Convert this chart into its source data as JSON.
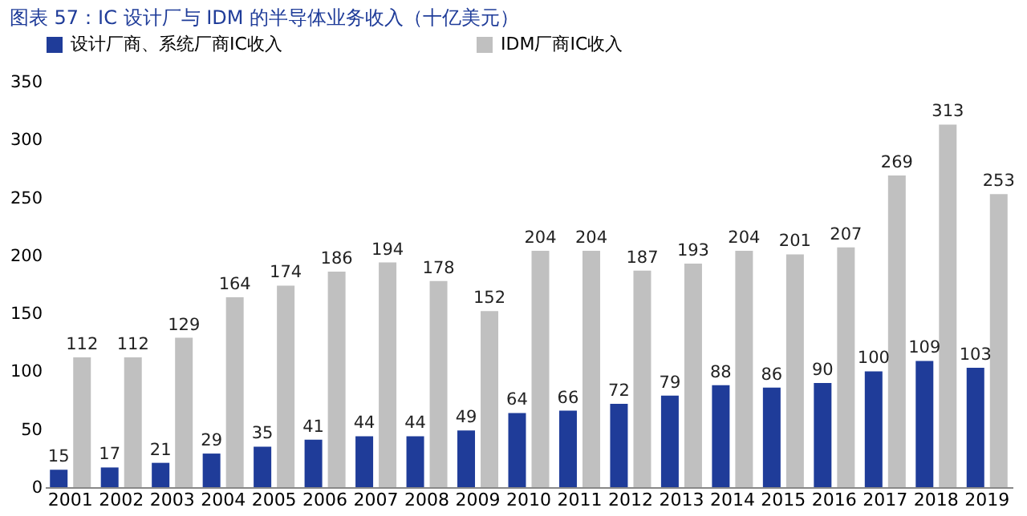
{
  "chart_data": {
    "type": "bar",
    "title": "图表 57：IC 设计厂与 IDM 的半导体业务收入（十亿美元）",
    "categories": [
      "2001",
      "2002",
      "2003",
      "2004",
      "2005",
      "2006",
      "2007",
      "2008",
      "2009",
      "2010",
      "2011",
      "2012",
      "2013",
      "2014",
      "2015",
      "2016",
      "2017",
      "2018",
      "2019"
    ],
    "series": [
      {
        "name": "设计厂商、系统厂商IC收入",
        "color": "#1f3c99",
        "values": [
          15,
          17,
          21,
          29,
          35,
          41,
          44,
          44,
          49,
          64,
          66,
          72,
          79,
          88,
          86,
          90,
          100,
          109,
          103
        ]
      },
      {
        "name": "IDM厂商IC收入",
        "color": "#c0c0c0",
        "values": [
          112,
          112,
          129,
          164,
          174,
          186,
          194,
          178,
          152,
          204,
          204,
          187,
          193,
          204,
          201,
          207,
          269,
          313,
          253
        ]
      }
    ],
    "ylim": [
      0,
      350
    ],
    "yticks": [
      0,
      50,
      100,
      150,
      200,
      250,
      300,
      350
    ],
    "grid": false,
    "legend": "top",
    "data_labels": true
  }
}
